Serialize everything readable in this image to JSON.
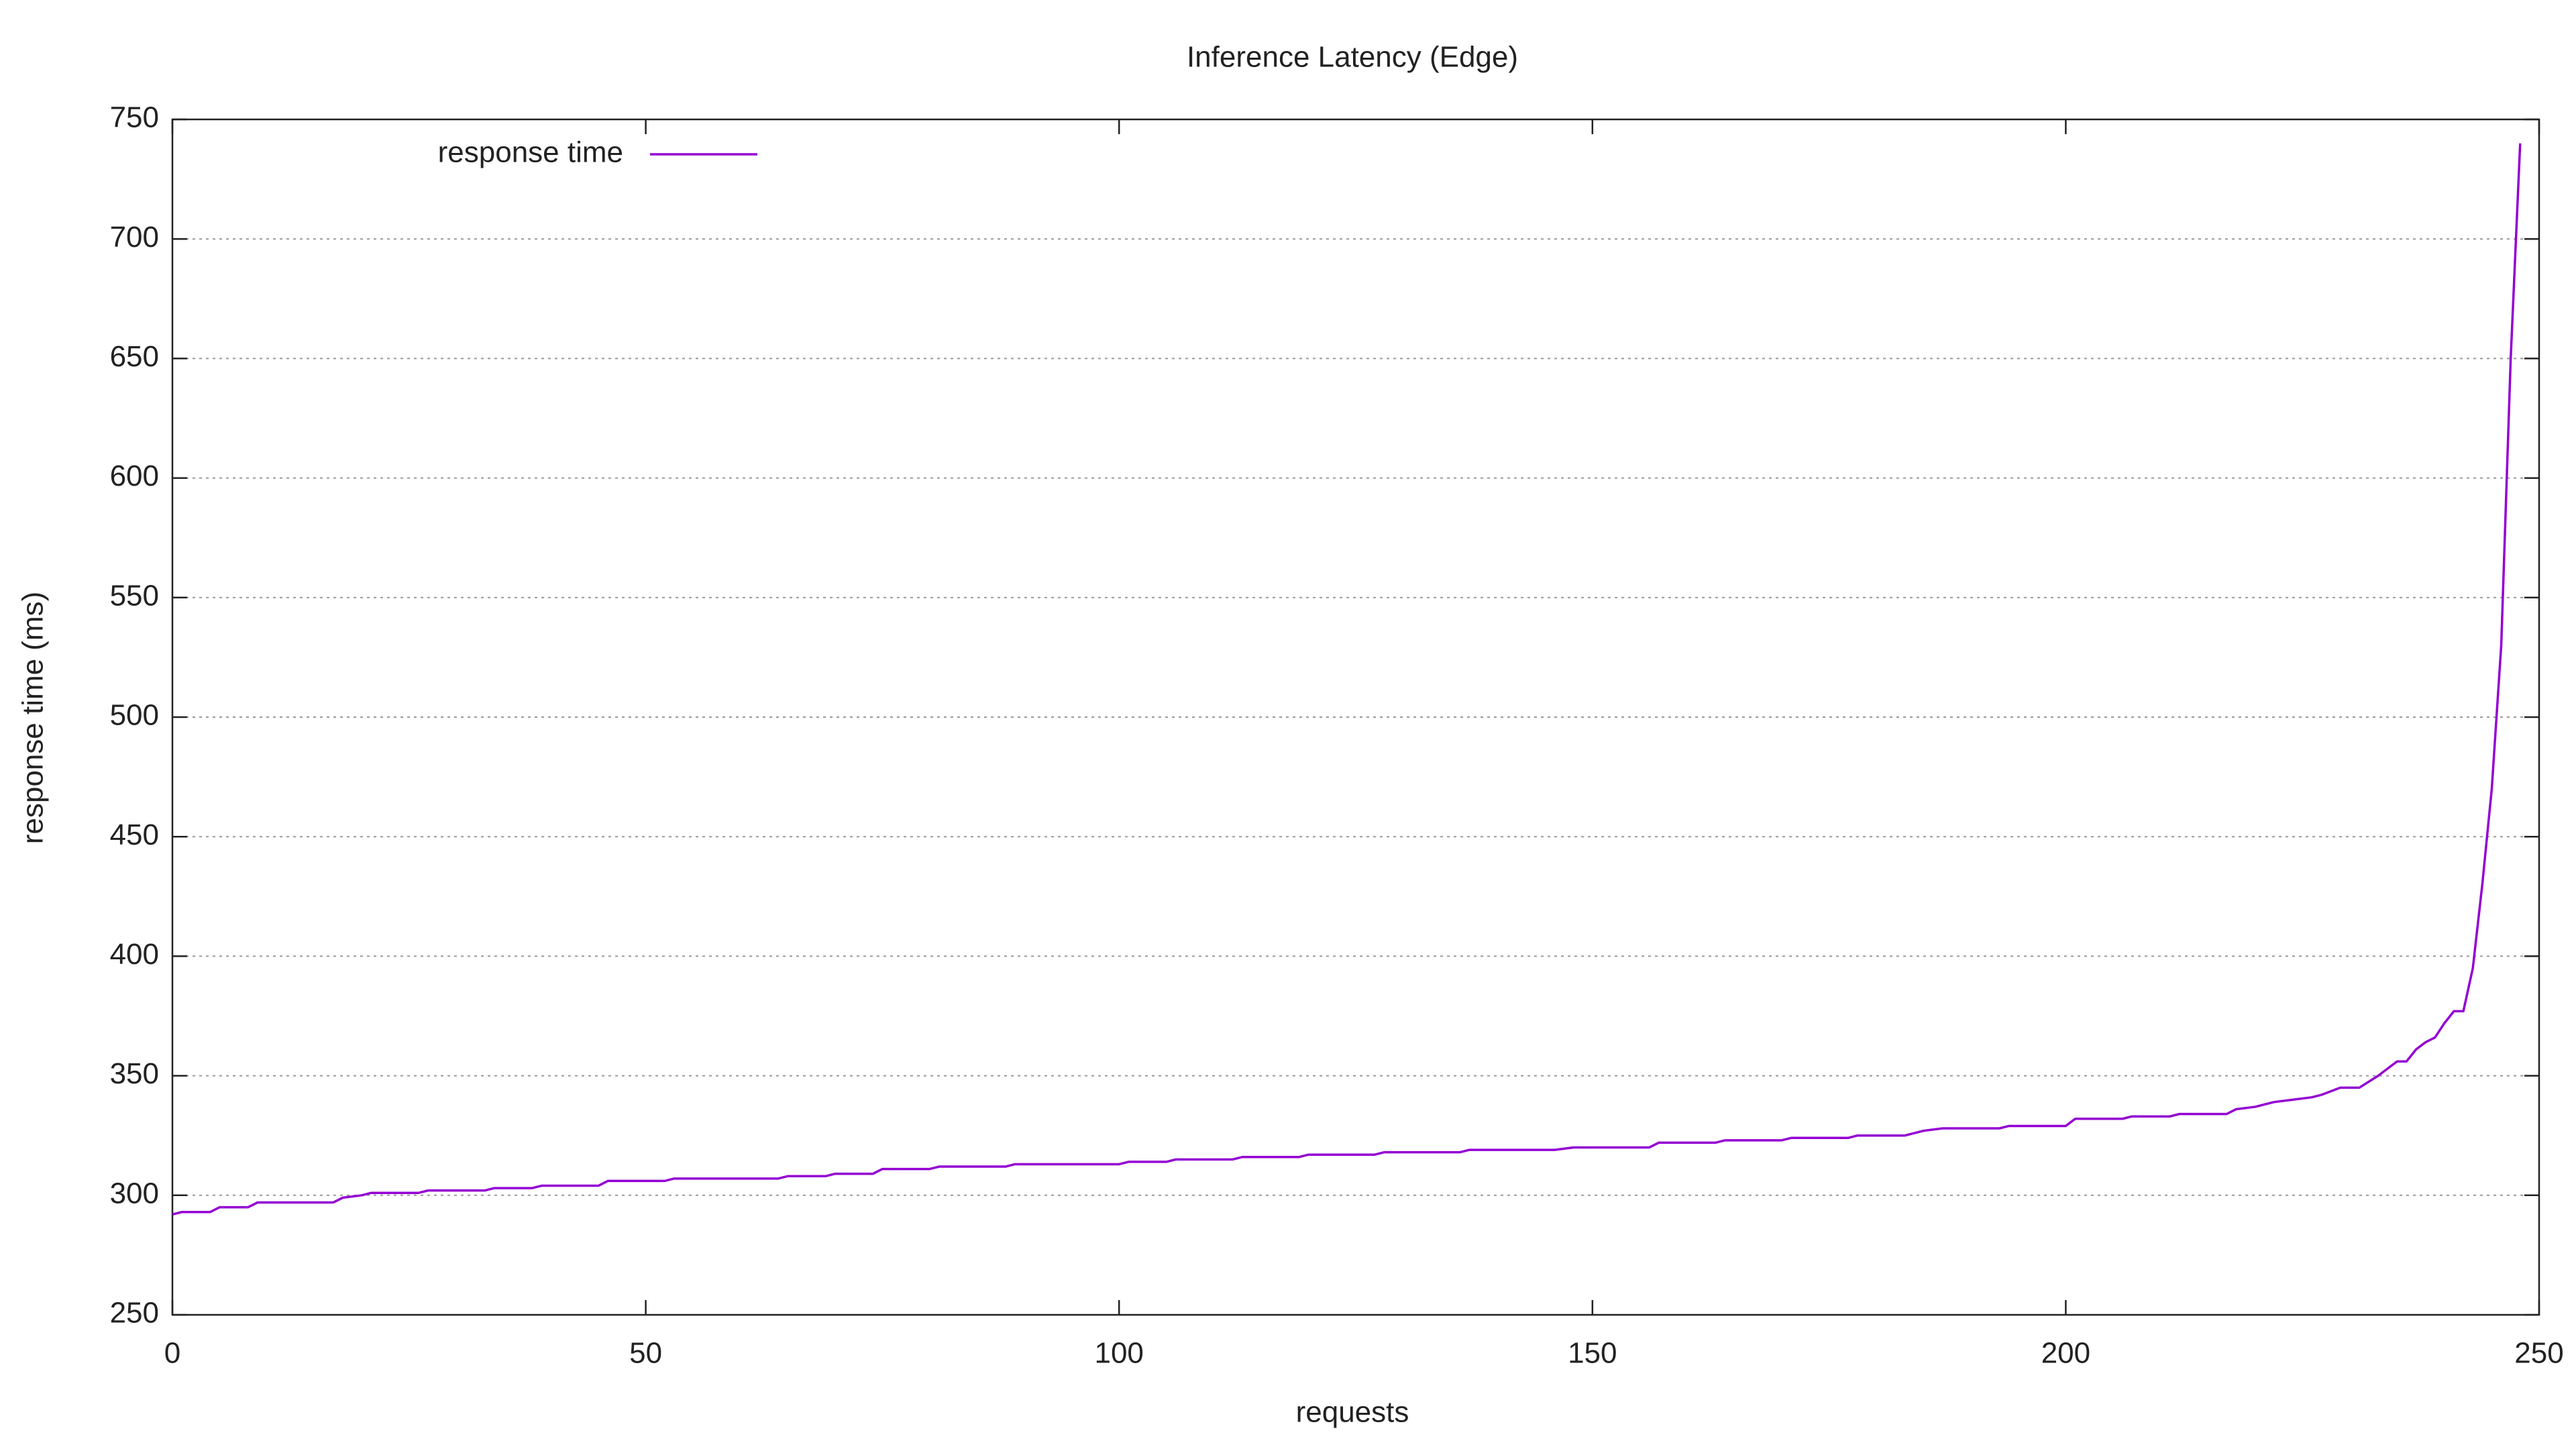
{
  "chart_data": {
    "type": "line",
    "title": "Inference Latency (Edge)",
    "x_label": "requests",
    "y_label": "response time (ms)",
    "x": [
      0,
      1,
      4,
      5,
      8,
      9,
      17,
      18,
      20,
      21,
      26,
      27,
      33,
      34,
      38,
      39,
      45,
      46,
      52,
      53,
      64,
      65,
      69,
      70,
      74,
      75,
      80,
      81,
      88,
      89,
      100,
      101,
      105,
      106,
      112,
      113,
      119,
      120,
      127,
      128,
      136,
      137,
      146,
      148,
      156,
      157,
      163,
      164,
      170,
      171,
      177,
      178,
      183,
      185,
      187,
      193,
      194,
      200,
      201,
      206,
      207,
      211,
      212,
      217,
      218,
      220,
      222,
      224,
      226,
      227,
      229,
      231,
      233,
      235,
      236,
      237,
      238,
      239,
      240,
      241,
      242,
      243,
      244,
      245,
      246,
      247,
      248
    ],
    "series": [
      {
        "name": "response time",
        "color": "#9400d3",
        "values": [
          292,
          293,
          293,
          295,
          295,
          297,
          297,
          299,
          300,
          301,
          301,
          302,
          302,
          303,
          303,
          304,
          304,
          306,
          306,
          307,
          307,
          308,
          308,
          309,
          309,
          311,
          311,
          312,
          312,
          313,
          313,
          314,
          314,
          315,
          315,
          316,
          316,
          317,
          317,
          318,
          318,
          319,
          319,
          320,
          320,
          322,
          322,
          323,
          323,
          324,
          324,
          325,
          325,
          327,
          328,
          328,
          329,
          329,
          332,
          332,
          333,
          333,
          334,
          334,
          336,
          337,
          339,
          340,
          341,
          342,
          345,
          345,
          350,
          356,
          356,
          361,
          364,
          366,
          372,
          377,
          377,
          395,
          430,
          470,
          530,
          650,
          740
        ]
      }
    ],
    "xlim": [
      0,
      250
    ],
    "xticks": [
      0,
      50,
      100,
      150,
      200,
      250
    ],
    "ylim": [
      250,
      750
    ],
    "yticks": [
      250,
      300,
      350,
      400,
      450,
      500,
      550,
      600,
      650,
      700,
      750
    ],
    "grid": true,
    "legend": "top left"
  }
}
